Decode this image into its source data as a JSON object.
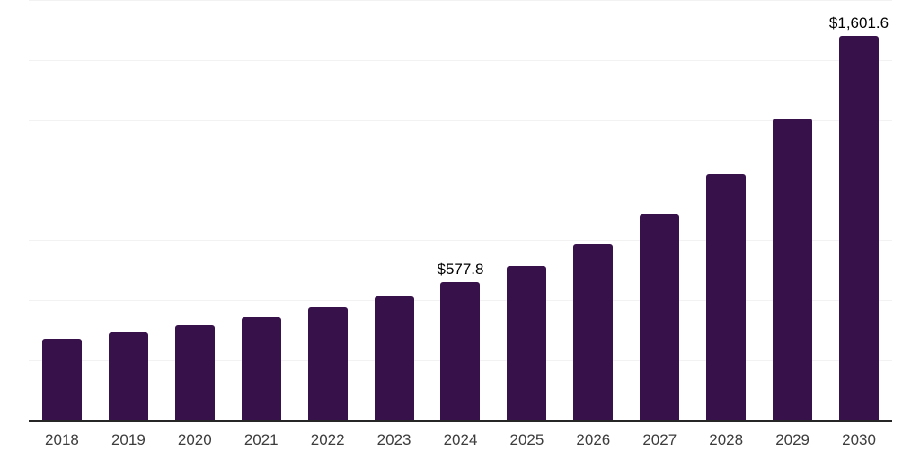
{
  "chart_data": {
    "type": "bar",
    "title": "",
    "xlabel": "",
    "ylabel": "",
    "categories": [
      "2018",
      "2019",
      "2020",
      "2021",
      "2022",
      "2023",
      "2024",
      "2025",
      "2026",
      "2027",
      "2028",
      "2029",
      "2030"
    ],
    "values": [
      339,
      366,
      397,
      431,
      472,
      516,
      577.8,
      642,
      733,
      860,
      1025,
      1258,
      1601.6
    ],
    "data_labels": [
      null,
      null,
      null,
      null,
      null,
      null,
      "$577.8",
      null,
      null,
      null,
      null,
      null,
      "$1,601.6"
    ],
    "ylim": [
      0,
      1750
    ],
    "gridline_step": 250,
    "grid": "horizontal",
    "legend_position": "none"
  },
  "colors": {
    "bar": "#371149",
    "gridline": "#f2f2f2",
    "axis_line": "#262626",
    "x_tick_label": "#3d3d3d",
    "data_label": "#000000",
    "background": "#ffffff"
  }
}
